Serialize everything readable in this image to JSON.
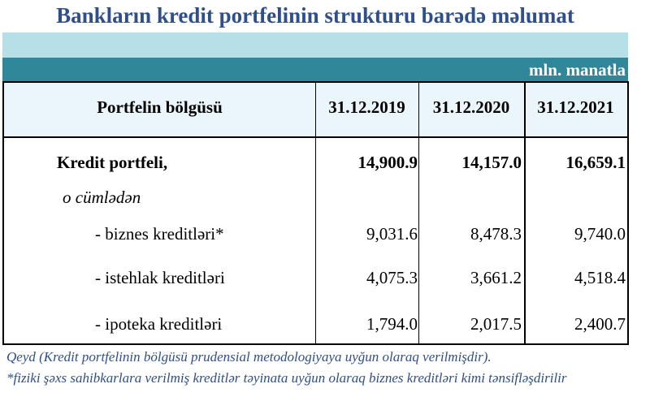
{
  "title": "Bankların kredit portfelinin strukturu barədə məlumat",
  "unit": "mln. manatla",
  "header": {
    "category": "Portfelin bölgüsü",
    "cols": [
      "31.12.2019",
      "31.12.2020",
      "31.12.2021"
    ]
  },
  "rows": [
    {
      "label": "Kredit portfeli,",
      "values": [
        "14,900.9",
        "14,157.0",
        "16,659.1"
      ]
    },
    {
      "label": "o cümlədən"
    },
    {
      "label": "- biznes kreditləri*",
      "values": [
        "9,031.6",
        "8,478.3",
        "9,740.0"
      ]
    },
    {
      "label": "- istehlak kreditləri",
      "values": [
        "4,075.3",
        "3,661.2",
        "4,518.4"
      ]
    },
    {
      "label": "- ipoteka kreditləri",
      "values": [
        "1,794.0",
        "2,017.5",
        "2,400.7"
      ]
    }
  ],
  "notes": [
    "Qeyd (Kredit portfelinin bölgüsü prudensial metodologiyaya uyğun olaraq verilmişdir).",
    "*fiziki şəxs sahibkarlara verilmiş kreditlər təyinata uyğun olaraq biznes kreditləri kimi tənsifləşdirilir"
  ]
}
